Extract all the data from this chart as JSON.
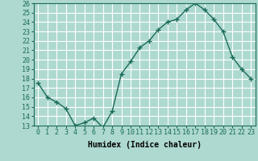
{
  "x": [
    0,
    1,
    2,
    3,
    4,
    5,
    6,
    7,
    8,
    9,
    10,
    11,
    12,
    13,
    14,
    15,
    16,
    17,
    18,
    19,
    20,
    21,
    22,
    23
  ],
  "y": [
    17.5,
    16.0,
    15.5,
    14.8,
    13.0,
    13.3,
    13.8,
    12.8,
    14.5,
    18.5,
    19.8,
    21.3,
    22.0,
    23.2,
    24.0,
    24.3,
    25.3,
    26.0,
    25.3,
    24.3,
    23.0,
    20.3,
    19.0,
    18.0
  ],
  "line_color": "#1a6b5a",
  "bg_color": "#aed9d0",
  "grid_color": "#ffffff",
  "xlabel": "Humidex (Indice chaleur)",
  "ylim": [
    13,
    26
  ],
  "xlim": [
    -0.5,
    23.5
  ],
  "yticks": [
    13,
    14,
    15,
    16,
    17,
    18,
    19,
    20,
    21,
    22,
    23,
    24,
    25,
    26
  ],
  "xticks": [
    0,
    1,
    2,
    3,
    4,
    5,
    6,
    7,
    8,
    9,
    10,
    11,
    12,
    13,
    14,
    15,
    16,
    17,
    18,
    19,
    20,
    21,
    22,
    23
  ],
  "label_fontsize": 7,
  "tick_fontsize": 6
}
